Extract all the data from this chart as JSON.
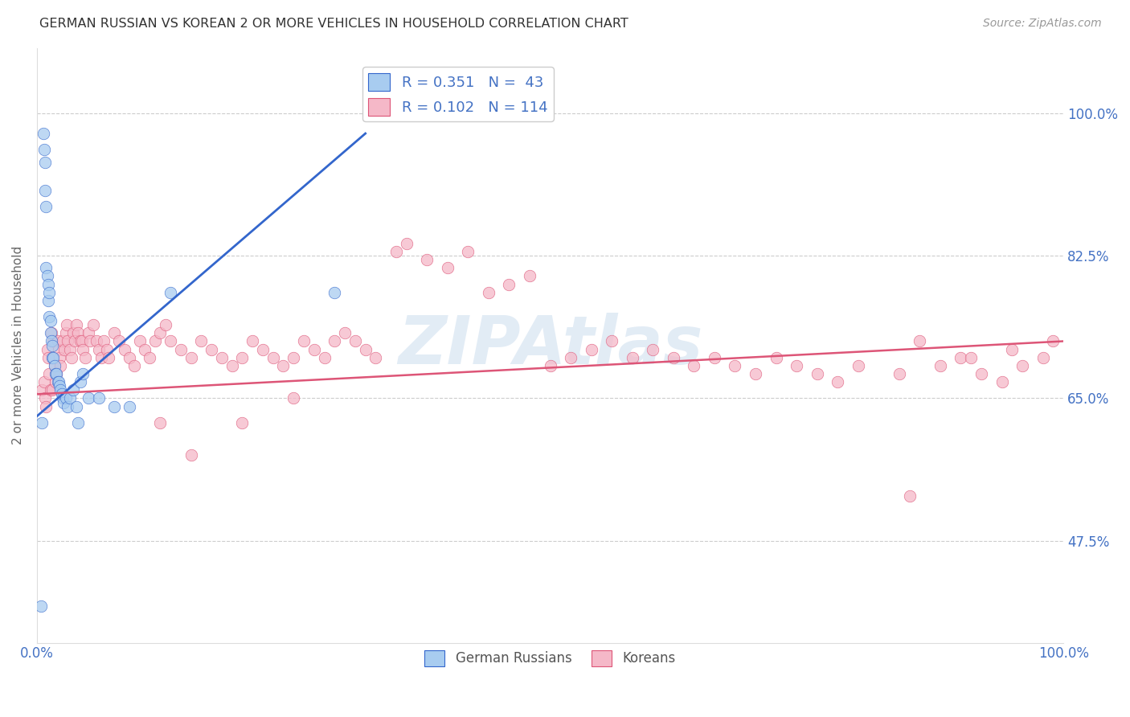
{
  "title": "GERMAN RUSSIAN VS KOREAN 2 OR MORE VEHICLES IN HOUSEHOLD CORRELATION CHART",
  "source": "Source: ZipAtlas.com",
  "ylabel": "2 or more Vehicles in Household",
  "xlim": [
    0.0,
    1.0
  ],
  "ylim": [
    0.35,
    1.08
  ],
  "yticks": [
    0.475,
    0.65,
    0.825,
    1.0
  ],
  "ytick_labels": [
    "47.5%",
    "65.0%",
    "82.5%",
    "100.0%"
  ],
  "watermark": "ZIPAtlas",
  "blue_scatter_x": [
    0.004,
    0.005,
    0.006,
    0.007,
    0.008,
    0.008,
    0.009,
    0.009,
    0.01,
    0.011,
    0.011,
    0.012,
    0.012,
    0.013,
    0.013,
    0.014,
    0.015,
    0.015,
    0.016,
    0.017,
    0.018,
    0.019,
    0.02,
    0.021,
    0.022,
    0.023,
    0.024,
    0.025,
    0.026,
    0.028,
    0.03,
    0.032,
    0.035,
    0.038,
    0.04,
    0.042,
    0.045,
    0.05,
    0.06,
    0.075,
    0.09,
    0.13,
    0.29
  ],
  "blue_scatter_y": [
    0.395,
    0.62,
    0.975,
    0.955,
    0.94,
    0.905,
    0.885,
    0.81,
    0.8,
    0.79,
    0.77,
    0.78,
    0.75,
    0.745,
    0.73,
    0.72,
    0.715,
    0.7,
    0.7,
    0.69,
    0.68,
    0.68,
    0.67,
    0.67,
    0.665,
    0.66,
    0.655,
    0.65,
    0.645,
    0.65,
    0.64,
    0.65,
    0.66,
    0.64,
    0.62,
    0.67,
    0.68,
    0.65,
    0.65,
    0.64,
    0.64,
    0.78,
    0.78
  ],
  "pink_scatter_x": [
    0.005,
    0.007,
    0.008,
    0.009,
    0.01,
    0.011,
    0.012,
    0.013,
    0.014,
    0.015,
    0.016,
    0.017,
    0.018,
    0.019,
    0.02,
    0.021,
    0.022,
    0.023,
    0.025,
    0.027,
    0.028,
    0.029,
    0.03,
    0.032,
    0.034,
    0.035,
    0.037,
    0.038,
    0.04,
    0.042,
    0.044,
    0.045,
    0.047,
    0.05,
    0.052,
    0.055,
    0.058,
    0.06,
    0.063,
    0.065,
    0.068,
    0.07,
    0.075,
    0.08,
    0.085,
    0.09,
    0.095,
    0.1,
    0.105,
    0.11,
    0.115,
    0.12,
    0.125,
    0.13,
    0.14,
    0.15,
    0.16,
    0.17,
    0.18,
    0.19,
    0.2,
    0.21,
    0.22,
    0.23,
    0.24,
    0.25,
    0.26,
    0.27,
    0.28,
    0.29,
    0.3,
    0.31,
    0.32,
    0.33,
    0.35,
    0.36,
    0.38,
    0.4,
    0.42,
    0.44,
    0.46,
    0.48,
    0.5,
    0.52,
    0.54,
    0.56,
    0.58,
    0.6,
    0.62,
    0.64,
    0.66,
    0.68,
    0.7,
    0.72,
    0.74,
    0.76,
    0.78,
    0.8,
    0.84,
    0.86,
    0.88,
    0.9,
    0.92,
    0.94,
    0.96,
    0.98,
    0.99,
    0.85,
    0.91,
    0.95,
    0.12,
    0.15,
    0.2,
    0.25
  ],
  "pink_scatter_y": [
    0.66,
    0.67,
    0.65,
    0.64,
    0.71,
    0.7,
    0.68,
    0.66,
    0.73,
    0.66,
    0.72,
    0.69,
    0.67,
    0.68,
    0.72,
    0.71,
    0.7,
    0.69,
    0.72,
    0.71,
    0.73,
    0.74,
    0.72,
    0.71,
    0.7,
    0.73,
    0.72,
    0.74,
    0.73,
    0.72,
    0.72,
    0.71,
    0.7,
    0.73,
    0.72,
    0.74,
    0.72,
    0.71,
    0.7,
    0.72,
    0.71,
    0.7,
    0.73,
    0.72,
    0.71,
    0.7,
    0.69,
    0.72,
    0.71,
    0.7,
    0.72,
    0.73,
    0.74,
    0.72,
    0.71,
    0.7,
    0.72,
    0.71,
    0.7,
    0.69,
    0.7,
    0.72,
    0.71,
    0.7,
    0.69,
    0.7,
    0.72,
    0.71,
    0.7,
    0.72,
    0.73,
    0.72,
    0.71,
    0.7,
    0.83,
    0.84,
    0.82,
    0.81,
    0.83,
    0.78,
    0.79,
    0.8,
    0.69,
    0.7,
    0.71,
    0.72,
    0.7,
    0.71,
    0.7,
    0.69,
    0.7,
    0.69,
    0.68,
    0.7,
    0.69,
    0.68,
    0.67,
    0.69,
    0.68,
    0.72,
    0.69,
    0.7,
    0.68,
    0.67,
    0.69,
    0.7,
    0.72,
    0.53,
    0.7,
    0.71,
    0.62,
    0.58,
    0.62,
    0.65
  ],
  "blue_line_x": [
    0.0,
    0.32
  ],
  "blue_line_y": [
    0.628,
    0.975
  ],
  "pink_line_x": [
    0.0,
    1.0
  ],
  "pink_line_y": [
    0.655,
    0.72
  ],
  "scatter_size": 110,
  "blue_color": "#A8CCF0",
  "pink_color": "#F5B8C8",
  "blue_line_color": "#3366CC",
  "pink_line_color": "#DD5577",
  "background_color": "#FFFFFF",
  "grid_color": "#CCCCCC",
  "title_color": "#333333",
  "axis_tick_color_right": "#4472C4",
  "watermark_color": "#B8D0E8",
  "legend_R_blue": "0.351",
  "legend_N_blue": " 43",
  "legend_R_pink": "0.102",
  "legend_N_pink": "114"
}
